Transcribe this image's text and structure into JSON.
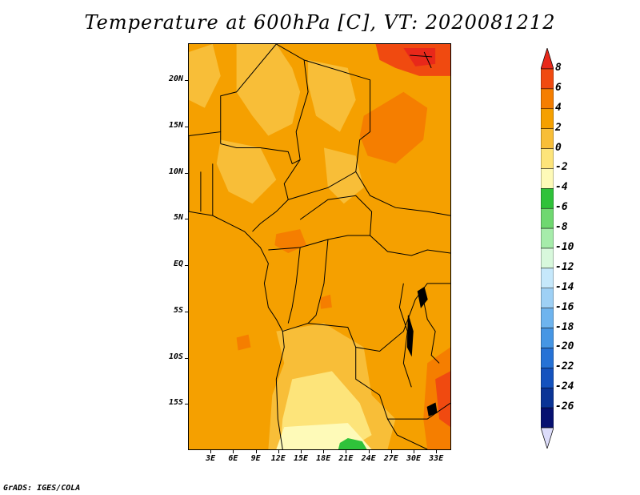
{
  "title": "Temperature at 600hPa [C], VT: 2020081212",
  "footer": "GrADS: IGES/COLA",
  "map": {
    "lon_range": [
      0,
      35
    ],
    "lat_range": [
      -20,
      24
    ],
    "y_labels": [
      {
        "lat": 20,
        "text": "20N"
      },
      {
        "lat": 15,
        "text": "15N"
      },
      {
        "lat": 10,
        "text": "10N"
      },
      {
        "lat": 5,
        "text": "5N"
      },
      {
        "lat": 0,
        "text": "EQ"
      },
      {
        "lat": -5,
        "text": "5S"
      },
      {
        "lat": -10,
        "text": "10S"
      },
      {
        "lat": -15,
        "text": "15S"
      }
    ],
    "x_labels": [
      {
        "lon": 3,
        "text": "3E"
      },
      {
        "lon": 6,
        "text": "6E"
      },
      {
        "lon": 9,
        "text": "9E"
      },
      {
        "lon": 12,
        "text": "12E"
      },
      {
        "lon": 15,
        "text": "15E"
      },
      {
        "lon": 18,
        "text": "18E"
      },
      {
        "lon": 21,
        "text": "21E"
      },
      {
        "lon": 24,
        "text": "24E"
      },
      {
        "lon": 27,
        "text": "27E"
      },
      {
        "lon": 30,
        "text": "30E"
      },
      {
        "lon": 33,
        "text": "33E"
      }
    ]
  },
  "colorbar": {
    "levels": [
      "8",
      "6",
      "4",
      "2",
      "0",
      "-2",
      "-4",
      "-6",
      "-8",
      "-10",
      "-12",
      "-14",
      "-16",
      "-18",
      "-20",
      "-22",
      "-24",
      "-26"
    ],
    "colors": [
      "#e8281a",
      "#f04a10",
      "#f57e00",
      "#f5a000",
      "#f8be38",
      "#fde47a",
      "#fefab8",
      "#2fc23a",
      "#6fd870",
      "#a6ecaa",
      "#d8f8dc",
      "#c6e8fb",
      "#9ed0f5",
      "#6eb4ee",
      "#4696e4",
      "#2672d6",
      "#1452be",
      "#0a3496",
      "#061070",
      "#dcdcfa"
    ]
  }
}
